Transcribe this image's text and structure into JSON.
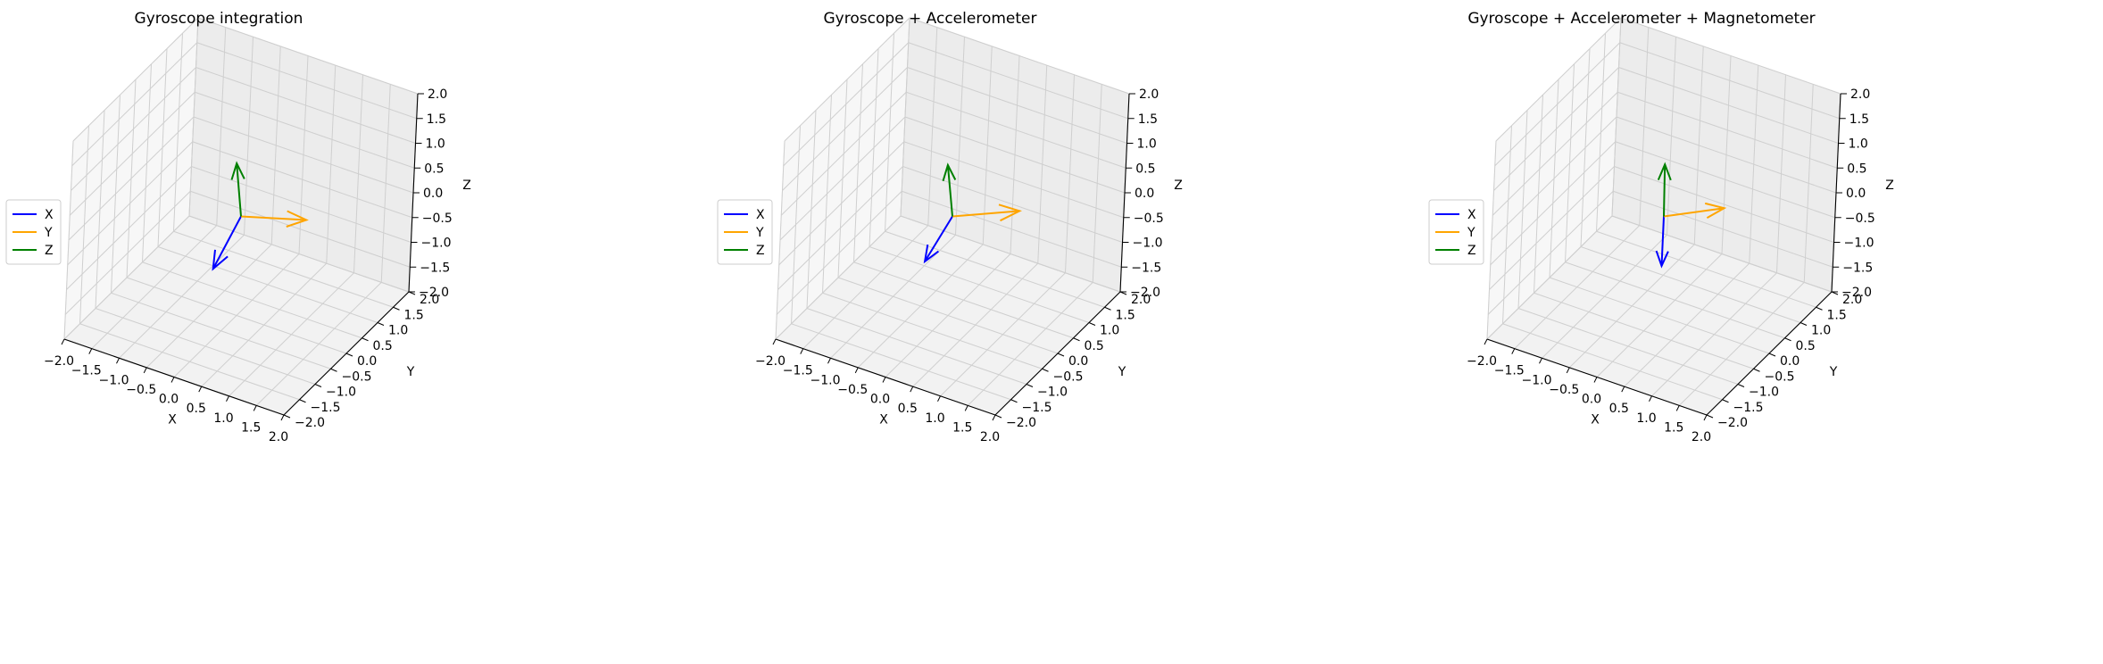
{
  "chart_data": [
    {
      "type": "3d-quiver",
      "title": "Gyroscope integration",
      "xlabel": "X",
      "ylabel": "Y",
      "zlabel": "Z",
      "xlim": [
        -2,
        2
      ],
      "ylim": [
        -2,
        2
      ],
      "zlim": [
        -2,
        2
      ],
      "xticks": [
        "−2.0",
        "−1.5",
        "−1.0",
        "−0.5",
        "0.0",
        "0.5",
        "1.0",
        "1.5",
        "2.0"
      ],
      "yticks": [
        "−2.0",
        "−1.5",
        "−1.0",
        "−0.5",
        "0.0",
        "0.5",
        "1.0",
        "1.5",
        "2.0"
      ],
      "zticks": [
        "−2.0",
        "−1.5",
        "−1.0",
        "−0.5",
        "0.0",
        "0.5",
        "1.0",
        "1.5",
        "2.0"
      ],
      "grid": true,
      "legend_position": "left",
      "series": [
        {
          "name": "X",
          "color": "#0000ff",
          "vector": [
            0.05,
            -0.95,
            -0.45
          ]
        },
        {
          "name": "Y",
          "color": "#ffa500",
          "vector": [
            0.8,
            0.7,
            -0.2
          ]
        },
        {
          "name": "Z",
          "color": "#008000",
          "vector": [
            -0.2,
            0.15,
            0.9
          ]
        }
      ]
    },
    {
      "type": "3d-quiver",
      "title": "Gyroscope + Accelerometer",
      "xlabel": "X",
      "ylabel": "Y",
      "zlabel": "Z",
      "xlim": [
        -2,
        2
      ],
      "ylim": [
        -2,
        2
      ],
      "zlim": [
        -2,
        2
      ],
      "xticks": [
        "−2.0",
        "−1.5",
        "−1.0",
        "−0.5",
        "0.0",
        "0.5",
        "1.0",
        "1.5",
        "2.0"
      ],
      "yticks": [
        "−2.0",
        "−1.5",
        "−1.0",
        "−0.5",
        "0.0",
        "0.5",
        "1.0",
        "1.5",
        "2.0"
      ],
      "zticks": [
        "−2.0",
        "−1.5",
        "−1.0",
        "−0.5",
        "0.0",
        "0.5",
        "1.0",
        "1.5",
        "2.0"
      ],
      "grid": true,
      "legend_position": "left",
      "series": [
        {
          "name": "X",
          "color": "#0000ff",
          "vector": [
            0.05,
            -0.95,
            -0.3
          ]
        },
        {
          "name": "Y",
          "color": "#ffa500",
          "vector": [
            0.8,
            0.75,
            -0.05
          ]
        },
        {
          "name": "Z",
          "color": "#008000",
          "vector": [
            -0.15,
            0.05,
            0.95
          ]
        }
      ]
    },
    {
      "type": "3d-quiver",
      "title": "Gyroscope + Accelerometer + Magnetometer",
      "xlabel": "X",
      "ylabel": "Y",
      "zlabel": "Z",
      "xlim": [
        -2,
        2
      ],
      "ylim": [
        -2,
        2
      ],
      "zlim": [
        -2,
        2
      ],
      "xticks": [
        "−2.0",
        "−1.5",
        "−1.0",
        "−0.5",
        "0.0",
        "0.5",
        "1.0",
        "1.5",
        "2.0"
      ],
      "yticks": [
        "−2.0",
        "−1.5",
        "−1.0",
        "−0.5",
        "0.0",
        "0.5",
        "1.0",
        "1.5",
        "2.0"
      ],
      "zticks": [
        "−2.0",
        "−1.5",
        "−1.0",
        "−0.5",
        "0.0",
        "0.5",
        "1.0",
        "1.5",
        "2.0"
      ],
      "grid": true,
      "legend_position": "left",
      "series": [
        {
          "name": "X",
          "color": "#0000ff",
          "vector": [
            0,
            0,
            -1
          ]
        },
        {
          "name": "Y",
          "color": "#ffa500",
          "vector": [
            0.7,
            0.7,
            0
          ]
        },
        {
          "name": "Z",
          "color": "#008000",
          "vector": [
            -0.05,
            0.05,
            1
          ]
        }
      ]
    }
  ]
}
